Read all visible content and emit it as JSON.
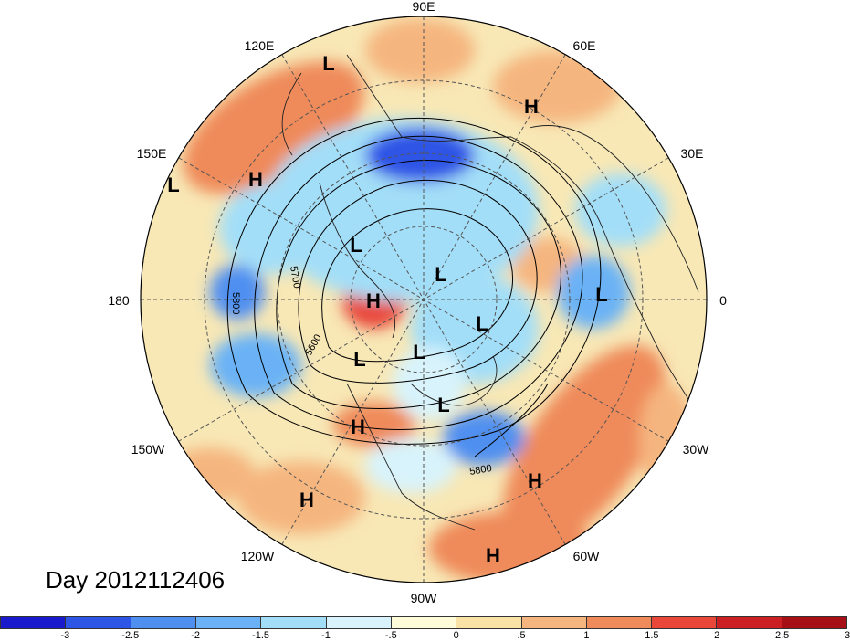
{
  "title": "Day 2012112406",
  "longitude_labels": {
    "top": "90E",
    "upper_left": "120E",
    "upper_right": "60E",
    "left_upper": "150E",
    "right_upper": "30E",
    "left": "180",
    "right": "0",
    "left_lower": "150W",
    "right_lower": "30W",
    "lower_left": "120W",
    "lower_right": "60W",
    "bottom": "90W"
  },
  "contour_labels": [
    "5700",
    "5800",
    "5600",
    "5800"
  ],
  "pressure_centers": [
    {
      "name": "L"
    },
    {
      "name": "H"
    },
    {
      "name": "L"
    },
    {
      "name": "H"
    },
    {
      "name": "L"
    },
    {
      "name": "L"
    },
    {
      "name": "H"
    },
    {
      "name": "L"
    },
    {
      "name": "L"
    },
    {
      "name": "L"
    },
    {
      "name": "L"
    },
    {
      "name": "L"
    },
    {
      "name": "H"
    },
    {
      "name": "H"
    },
    {
      "name": "H"
    },
    {
      "name": "H"
    }
  ],
  "colorbar": {
    "colors": [
      "#1a1acd",
      "#2d55e6",
      "#4f8ff0",
      "#6ab2f5",
      "#a3def8",
      "#d8f3fb",
      "#fdfbd8",
      "#f8e2a6",
      "#f5b57f",
      "#ef8a5a",
      "#e8473a",
      "#cc1f24",
      "#a50f15"
    ],
    "tick_labels": [
      "-3",
      "-2.5",
      "-2",
      "-1.5",
      "-1",
      "-.5",
      "0",
      ".5",
      "1",
      "1.5",
      "2",
      "2.5",
      "3"
    ]
  },
  "colors": {
    "background_fill": "#f8e8b6",
    "ocean_base": "#f7e6b0",
    "coastline": "#222222"
  }
}
